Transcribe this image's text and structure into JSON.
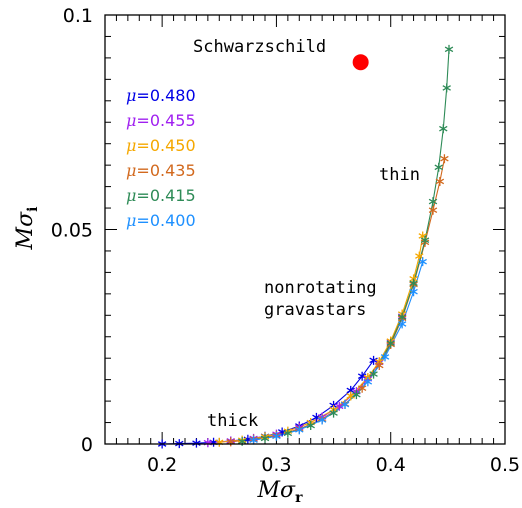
{
  "chart_data": {
    "type": "scatter",
    "xlabel_main": "Mσ",
    "xlabel_sub": "r",
    "ylabel_main": "Mσ",
    "ylabel_sub": "i",
    "xlim": [
      0.15,
      0.5
    ],
    "ylim": [
      0,
      0.1
    ],
    "x_ticks": [
      0.2,
      0.3,
      0.4,
      0.5
    ],
    "x_tick_labels": [
      "0.2",
      "0.3",
      "0.4",
      "0.5"
    ],
    "y_ticks": [
      0,
      0.05,
      0.1
    ],
    "y_tick_labels": [
      "0",
      "0.05",
      "0.1"
    ],
    "grid": false,
    "legend_placement": "top-left",
    "annotations": {
      "schwarzschild": "Schwarzschild",
      "thin": "thin",
      "thick": "thick",
      "nonrotating_1": "nonrotating",
      "nonrotating_2": "gravastars"
    },
    "schwarzschild_point": {
      "x": 0.3737,
      "y": 0.089,
      "color": "#ff0000"
    },
    "series": [
      {
        "name": "μ=0.480",
        "label_mu": "μ",
        "label_value": "=0.480",
        "color": "#0000e6",
        "x": [
          0.2,
          0.215,
          0.23,
          0.245,
          0.26,
          0.275,
          0.29,
          0.305,
          0.32,
          0.335,
          0.35,
          0.365,
          0.375,
          0.385
        ],
        "y": [
          0,
          0.0001,
          0.0002,
          0.0004,
          0.0007,
          0.0011,
          0.0018,
          0.0028,
          0.0042,
          0.0062,
          0.009,
          0.0125,
          0.0158,
          0.0195
        ]
      },
      {
        "name": "μ=0.455",
        "label_mu": "μ",
        "label_value": "=0.455",
        "color": "#a020f0",
        "x": [
          0.24,
          0.26,
          0.28,
          0.3,
          0.32,
          0.34,
          0.355,
          0.37,
          0.38,
          0.39,
          0.4,
          0.41
        ],
        "y": [
          0.0003,
          0.0007,
          0.0013,
          0.0023,
          0.0039,
          0.0063,
          0.0088,
          0.0122,
          0.0152,
          0.019,
          0.0238,
          0.0298
        ]
      },
      {
        "name": "μ=0.450",
        "label_mu": "μ",
        "label_value": "=0.450",
        "color": "#f5a800",
        "x": [
          0.25,
          0.27,
          0.29,
          0.31,
          0.33,
          0.35,
          0.365,
          0.38,
          0.39,
          0.4,
          0.41,
          0.42,
          0.425,
          0.428
        ],
        "y": [
          0.0004,
          0.0009,
          0.0017,
          0.003,
          0.005,
          0.008,
          0.0112,
          0.0155,
          0.0192,
          0.024,
          0.0303,
          0.0385,
          0.0438,
          0.0485
        ]
      },
      {
        "name": "μ=0.435",
        "label_mu": "μ",
        "label_value": "=0.435",
        "color": "#d2691e",
        "x": [
          0.26,
          0.28,
          0.3,
          0.32,
          0.34,
          0.36,
          0.375,
          0.39,
          0.4,
          0.41,
          0.42,
          0.43,
          0.437,
          0.443,
          0.447
        ],
        "y": [
          0.0005,
          0.0011,
          0.002,
          0.0035,
          0.0058,
          0.0093,
          0.013,
          0.0183,
          0.0232,
          0.0293,
          0.0372,
          0.047,
          0.0545,
          0.0612,
          0.0665
        ]
      },
      {
        "name": "μ=0.415",
        "label_mu": "μ",
        "label_value": "=0.415",
        "color": "#2e8b57",
        "x": [
          0.27,
          0.29,
          0.31,
          0.33,
          0.35,
          0.37,
          0.385,
          0.4,
          0.41,
          0.42,
          0.43,
          0.437,
          0.442,
          0.446,
          0.449,
          0.451
        ],
        "y": [
          0.0006,
          0.0013,
          0.0025,
          0.0043,
          0.0072,
          0.0115,
          0.0163,
          0.0235,
          0.0296,
          0.0375,
          0.0475,
          0.0565,
          0.0645,
          0.0735,
          0.083,
          0.092
        ]
      },
      {
        "name": "μ=0.400",
        "label_mu": "μ",
        "label_value": "=0.400",
        "color": "#1e90ff",
        "x": [
          0.28,
          0.3,
          0.32,
          0.34,
          0.36,
          0.38,
          0.395,
          0.41,
          0.42,
          0.428
        ],
        "y": [
          0.0009,
          0.0018,
          0.0033,
          0.0056,
          0.0092,
          0.0145,
          0.0203,
          0.028,
          0.0355,
          0.0425
        ]
      }
    ]
  }
}
